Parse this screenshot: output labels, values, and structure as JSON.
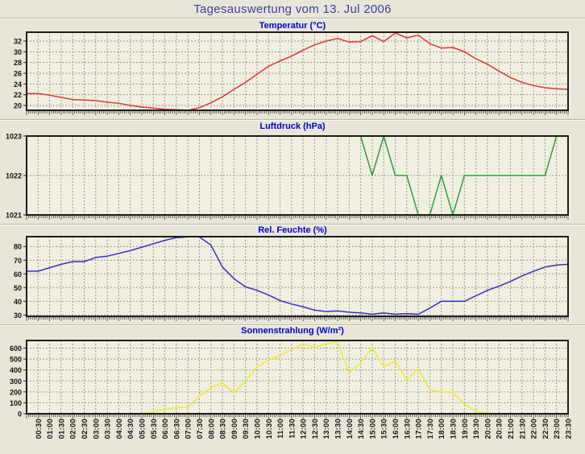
{
  "title": "Tagesauswertung vom 13. Jul 2006",
  "colors": {
    "page_bg": "#e7e6d8",
    "plot_bg": "#f0efe1",
    "grid": "#9c9c90",
    "frame": "#1c1c1c",
    "title_text": "#4040a0",
    "chart_label_text": "#0000cd",
    "tick_text": "#141414",
    "temperature_line": "#dd3938",
    "pressure_line": "#2fa040",
    "humidity_line": "#3434bd",
    "solar_line": "#eded2e"
  },
  "chart_data": {
    "type": "line",
    "title": "Tagesauswertung vom 13. Jul 2006",
    "layout": "4 stacked time-series panels sharing one x axis, dashed grid on",
    "grid": true,
    "legend": "none",
    "x_labels": [
      "00:30",
      "01:00",
      "01:30",
      "02:00",
      "02:30",
      "03:00",
      "03:30",
      "04:00",
      "04:30",
      "05:00",
      "05:30",
      "06:00",
      "06:30",
      "07:00",
      "07:30",
      "08:00",
      "08:30",
      "09:00",
      "09:30",
      "10:00",
      "10:30",
      "11:00",
      "11:30",
      "12:00",
      "12:30",
      "13:00",
      "13:30",
      "14:00",
      "14:30",
      "15:00",
      "15:30",
      "16:00",
      "16:30",
      "17:00",
      "17:30",
      "18:00",
      "18:30",
      "19:00",
      "19:30",
      "20:00",
      "20:30",
      "21:00",
      "21:30",
      "22:00",
      "22:30",
      "23:00",
      "23:30"
    ],
    "panels": [
      {
        "title": "Temperatur (°C)",
        "ylabel": "°C",
        "color": "#dd3938",
        "y_ticks": [
          20,
          22,
          24,
          26,
          28,
          30,
          32
        ],
        "y_min": 19.1,
        "y_max": 33.65,
        "values": [
          22.2,
          21.9,
          21.5,
          21.1,
          21.0,
          20.9,
          20.6,
          20.4,
          20.0,
          19.7,
          19.5,
          19.3,
          19.2,
          19.1,
          19.6,
          20.5,
          21.6,
          23.0,
          24.3,
          25.8,
          27.3,
          28.3,
          29.2,
          30.3,
          31.3,
          32.0,
          32.5,
          31.8,
          31.9,
          33.0,
          31.9,
          33.5,
          32.6,
          33.1,
          31.5,
          30.7,
          30.8,
          30.0,
          28.7,
          27.7,
          26.4,
          25.2,
          24.3,
          23.7,
          23.3,
          23.1,
          23.0
        ]
      },
      {
        "title": "Luftdruck (hPa)",
        "ylabel": "hPa",
        "color": "#2fa040",
        "y_ticks": [
          1021,
          1022,
          1023
        ],
        "y_min": 1021,
        "y_max": 1023,
        "values": [
          1023,
          1023,
          1023,
          1023,
          1023,
          1023,
          1023,
          1023,
          1023,
          1023,
          1023,
          1023,
          1023,
          1023,
          1023,
          1023,
          1023,
          1023,
          1023,
          1023,
          1023,
          1023,
          1023,
          1023,
          1023,
          1023,
          1023,
          1023,
          1023,
          1022,
          1023,
          1022,
          1022,
          1021,
          1021,
          1022,
          1021,
          1022,
          1022,
          1022,
          1022,
          1022,
          1022,
          1022,
          1022,
          1023,
          1023
        ]
      },
      {
        "title": "Rel. Feuchte (%)",
        "ylabel": "%",
        "color": "#3434bd",
        "y_ticks": [
          30,
          40,
          50,
          60,
          70,
          80
        ],
        "y_min": 29,
        "y_max": 87.2,
        "values": [
          62,
          64.5,
          67,
          69,
          69,
          72,
          73,
          75,
          77,
          79.5,
          82,
          84.5,
          86.5,
          87,
          87,
          81,
          65,
          56.5,
          50.5,
          48,
          44.5,
          40.5,
          38,
          36,
          33.5,
          32.5,
          33,
          32,
          31.5,
          30.5,
          31.5,
          30.5,
          31,
          30.5,
          35,
          40,
          40,
          40,
          44,
          48,
          51,
          54.5,
          58.5,
          62,
          65,
          66.5,
          67
        ]
      },
      {
        "title": "Sonnenstrahlung (W/m²)",
        "ylabel": "W/m²",
        "color": "#eded2e",
        "y_ticks": [
          0,
          100,
          200,
          300,
          400,
          500,
          600
        ],
        "y_min": 0,
        "y_max": 670,
        "values": [
          0,
          0,
          0,
          0,
          0,
          0,
          0,
          0,
          0,
          0,
          20,
          40,
          55,
          60,
          160,
          240,
          280,
          190,
          300,
          430,
          490,
          535,
          585,
          640,
          610,
          640,
          655,
          375,
          465,
          600,
          430,
          480,
          310,
          410,
          220,
          200,
          195,
          90,
          20,
          5,
          0,
          0,
          0,
          0,
          0,
          0,
          0
        ]
      }
    ]
  }
}
